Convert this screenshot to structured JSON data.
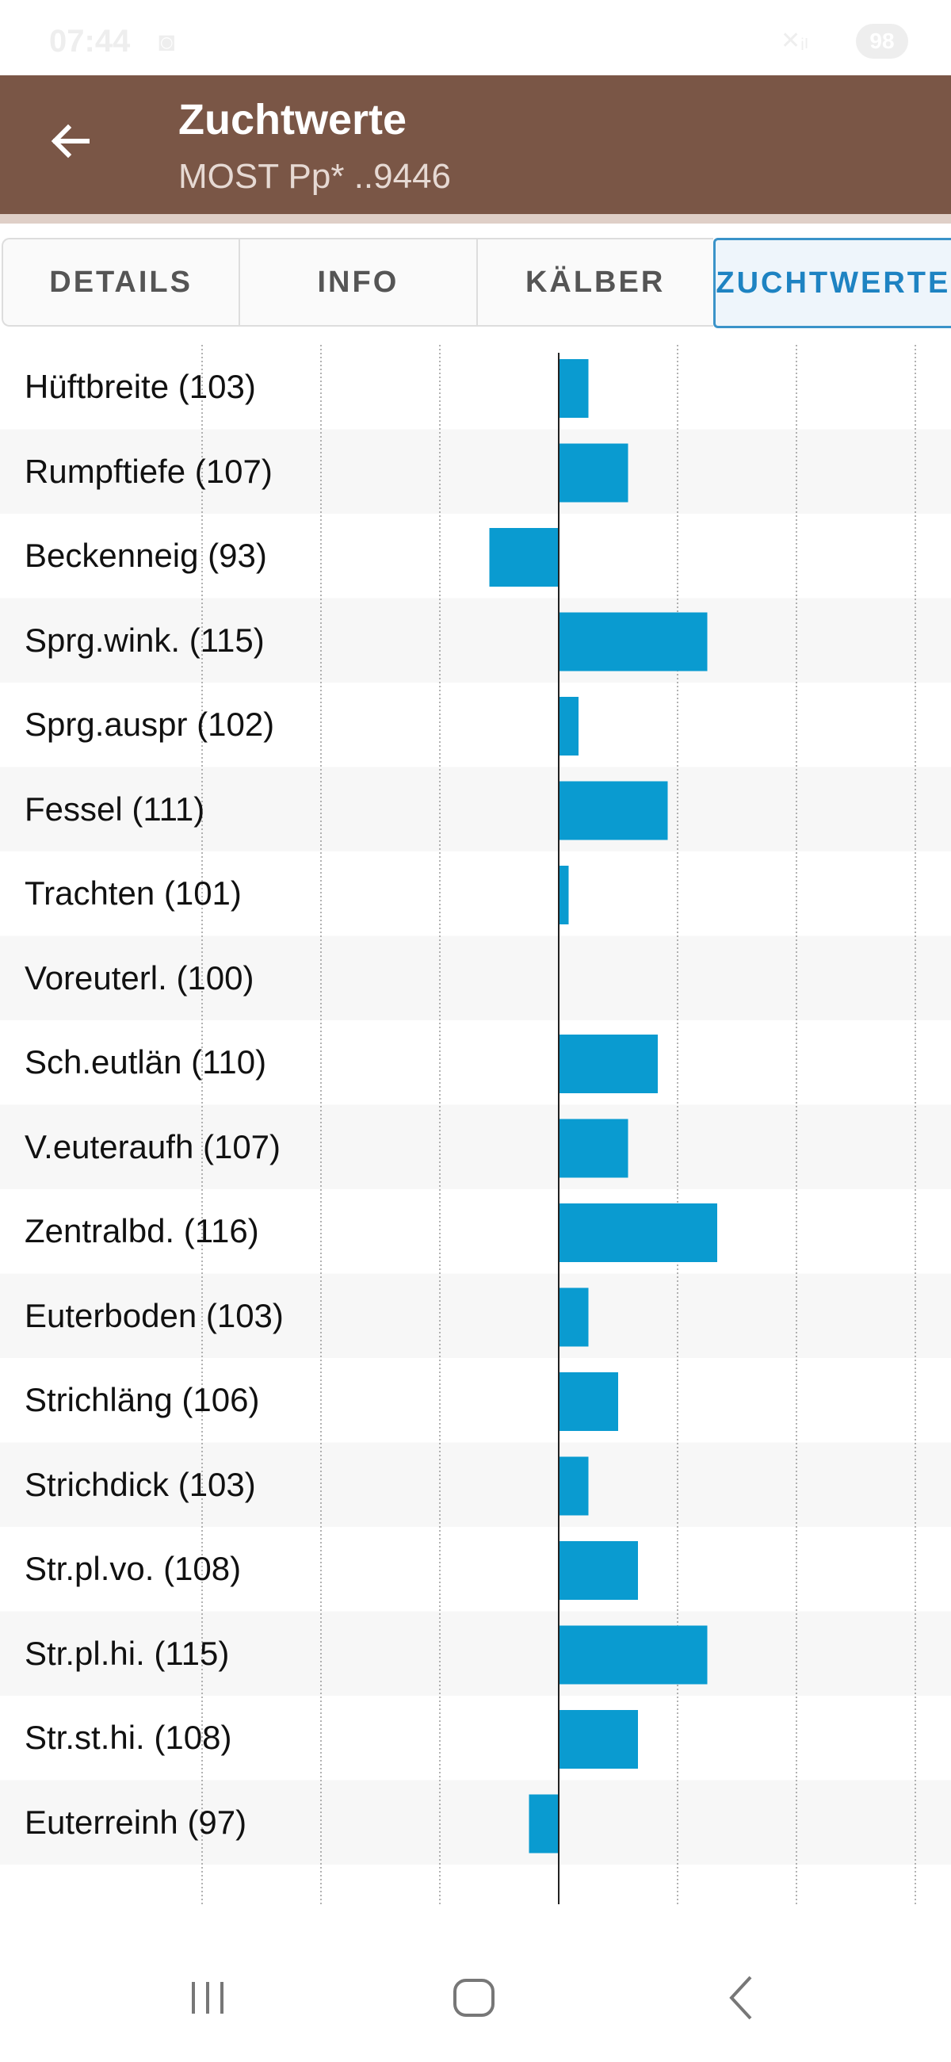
{
  "status": {
    "time": "07:44",
    "battery": "98"
  },
  "app_bar": {
    "title": "Zuchtwerte",
    "subtitle": "MOST Pp* ..9446",
    "back_icon": "arrow-left-icon"
  },
  "tabs": [
    {
      "label": "DETAILS",
      "active": false
    },
    {
      "label": "INFO",
      "active": false
    },
    {
      "label": "KÄLBER",
      "active": false
    },
    {
      "label": "ZUCHTWERTE",
      "active": true
    }
  ],
  "colors": {
    "app_bar": "#7a5646",
    "bar": "#0a9bd0",
    "tab_active": "#1e83c2"
  },
  "chart_data": {
    "type": "bar",
    "orientation": "horizontal",
    "baseline": 100,
    "xlim": [
      70,
      130
    ],
    "categories": [
      "Hüftbreite (103)",
      "Rumpftiefe (107)",
      "Beckenneig (93)",
      "Sprg.wink. (115)",
      "Sprg.auspr (102)",
      "Fessel (111)",
      "Trachten (101)",
      "Voreuterl. (100)",
      "Sch.eutlän (110)",
      "V.euteraufh (107)",
      "Zentralbd. (116)",
      "Euterboden (103)",
      "Strichläng (106)",
      "Strichdick (103)",
      "Str.pl.vo. (108)",
      "Str.pl.hi. (115)",
      "Str.st.hi. (108)",
      "Euterreinh (97)"
    ],
    "values": [
      103,
      107,
      93,
      115,
      102,
      111,
      101,
      100,
      110,
      107,
      116,
      103,
      106,
      103,
      108,
      115,
      108,
      97
    ]
  },
  "nav": {
    "recents": "recents-icon",
    "home": "home-icon",
    "back": "back-chevron-icon"
  }
}
